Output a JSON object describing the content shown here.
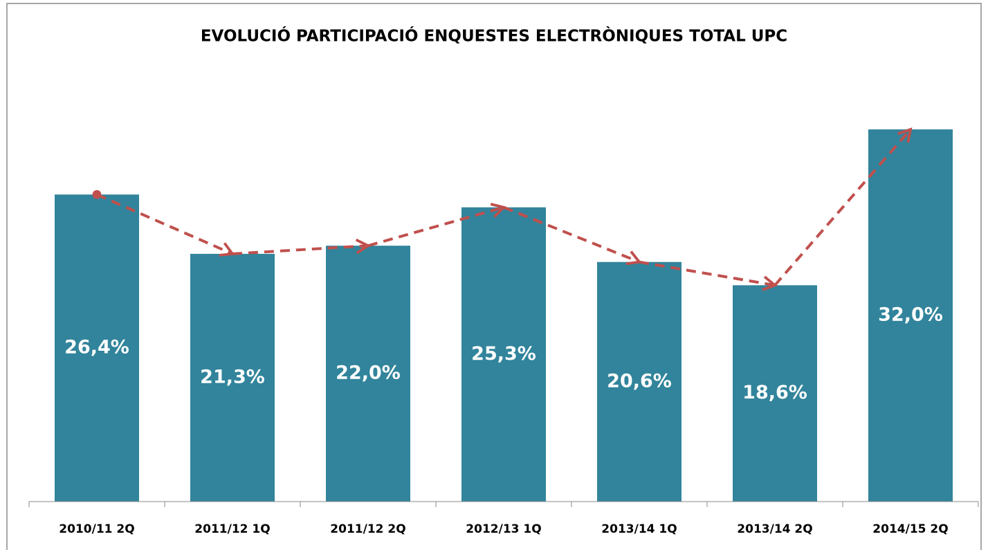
{
  "chart_data": {
    "type": "bar",
    "title": "EVOLUCIÓ PARTICIPACIÓ ENQUESTES ELECTRÒNIQUES TOTAL UPC",
    "categories": [
      "2010/11 2Q",
      "2011/12 1Q",
      "2011/12 2Q",
      "2012/13 1Q",
      "2013/14 1Q",
      "2013/14 2Q",
      "2014/15 2Q"
    ],
    "values": [
      26.4,
      21.3,
      22.0,
      25.3,
      20.6,
      18.6,
      32.0
    ],
    "value_labels": [
      "26,4%",
      "21,3%",
      "22,0%",
      "25,3%",
      "20,6%",
      "18,6%",
      "32,0%"
    ],
    "color": "#31849b",
    "trend_color": "#c0504d",
    "ylim": [
      0,
      35
    ]
  }
}
